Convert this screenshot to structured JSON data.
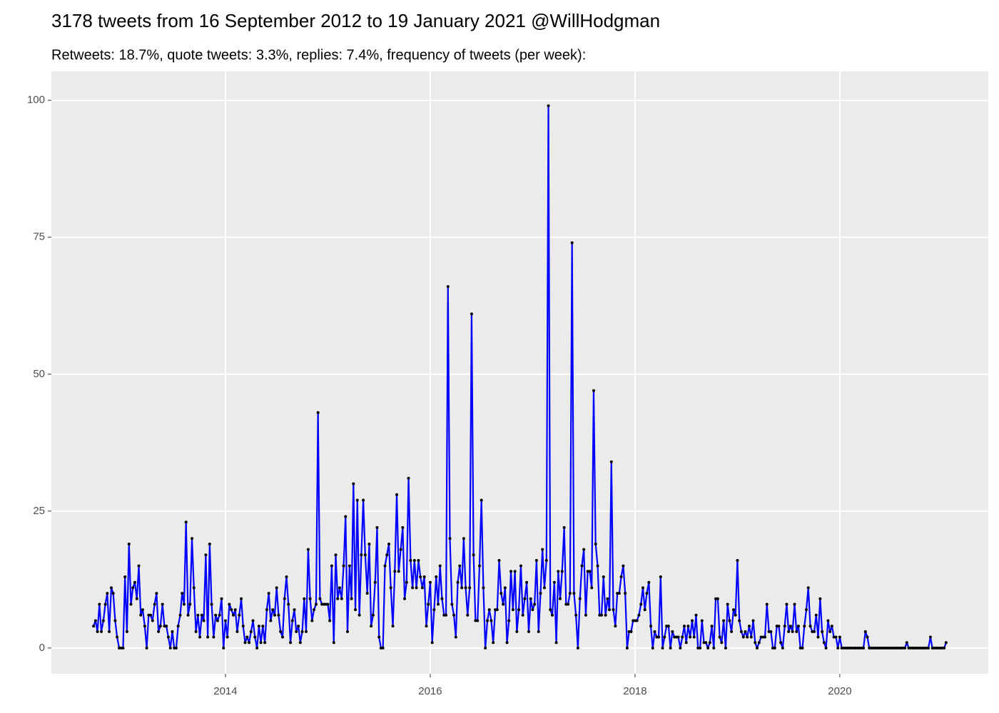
{
  "chart_data": {
    "type": "line",
    "title": "3178 tweets from 16 September 2012 to 19 January 2021 @WillHodgman",
    "subtitle": "Retweets: 18.7%, quote tweets: 3.3%, replies: 7.4%, frequency of tweets (per week):",
    "color": "#0000ff",
    "marker_color": "#000000",
    "grid": true,
    "xlim": [
      2012.3,
      2021.45
    ],
    "xticks": [
      2014,
      2016,
      2018,
      2020
    ],
    "ylim": [
      -4.7,
      105.3
    ],
    "yticks": [
      0,
      25,
      50,
      75,
      100
    ],
    "x": [
      2012.712,
      2012.731,
      2012.75,
      2012.769,
      2012.788,
      2012.808,
      2012.827,
      2012.846,
      2012.865,
      2012.885,
      2012.904,
      2012.923,
      2012.942,
      2012.962,
      2012.981,
      2013,
      2013.019,
      2013.038,
      2013.058,
      2013.077,
      2013.096,
      2013.115,
      2013.135,
      2013.154,
      2013.173,
      2013.192,
      2013.212,
      2013.231,
      2013.25,
      2013.269,
      2013.288,
      2013.308,
      2013.327,
      2013.346,
      2013.365,
      2013.385,
      2013.404,
      2013.423,
      2013.442,
      2013.462,
      2013.481,
      2013.5,
      2013.519,
      2013.538,
      2013.558,
      2013.577,
      2013.596,
      2013.615,
      2013.635,
      2013.654,
      2013.673,
      2013.692,
      2013.712,
      2013.731,
      2013.75,
      2013.769,
      2013.788,
      2013.808,
      2013.827,
      2013.846,
      2013.865,
      2013.885,
      2013.904,
      2013.923,
      2013.942,
      2013.962,
      2013.981,
      2014,
      2014.019,
      2014.038,
      2014.058,
      2014.077,
      2014.096,
      2014.115,
      2014.135,
      2014.154,
      2014.173,
      2014.192,
      2014.212,
      2014.231,
      2014.25,
      2014.269,
      2014.288,
      2014.308,
      2014.327,
      2014.346,
      2014.365,
      2014.385,
      2014.404,
      2014.423,
      2014.442,
      2014.462,
      2014.481,
      2014.5,
      2014.519,
      2014.538,
      2014.558,
      2014.577,
      2014.596,
      2014.615,
      2014.635,
      2014.654,
      2014.673,
      2014.692,
      2014.712,
      2014.731,
      2014.75,
      2014.769,
      2014.788,
      2014.808,
      2014.827,
      2014.846,
      2014.865,
      2014.885,
      2014.904,
      2014.923,
      2014.942,
      2014.962,
      2014.981,
      2015,
      2015.019,
      2015.038,
      2015.058,
      2015.077,
      2015.096,
      2015.115,
      2015.135,
      2015.154,
      2015.173,
      2015.192,
      2015.212,
      2015.231,
      2015.25,
      2015.269,
      2015.288,
      2015.308,
      2015.327,
      2015.346,
      2015.365,
      2015.385,
      2015.404,
      2015.423,
      2015.442,
      2015.462,
      2015.481,
      2015.5,
      2015.519,
      2015.538,
      2015.558,
      2015.577,
      2015.596,
      2015.615,
      2015.635,
      2015.654,
      2015.673,
      2015.692,
      2015.712,
      2015.731,
      2015.75,
      2015.769,
      2015.788,
      2015.808,
      2015.827,
      2015.846,
      2015.865,
      2015.885,
      2015.904,
      2015.923,
      2015.942,
      2015.962,
      2015.981,
      2016,
      2016.019,
      2016.038,
      2016.058,
      2016.077,
      2016.096,
      2016.115,
      2016.135,
      2016.154,
      2016.173,
      2016.192,
      2016.212,
      2016.231,
      2016.25,
      2016.269,
      2016.288,
      2016.308,
      2016.327,
      2016.346,
      2016.365,
      2016.385,
      2016.404,
      2016.423,
      2016.442,
      2016.462,
      2016.481,
      2016.5,
      2016.519,
      2016.538,
      2016.558,
      2016.577,
      2016.596,
      2016.615,
      2016.635,
      2016.654,
      2016.673,
      2016.692,
      2016.712,
      2016.731,
      2016.75,
      2016.769,
      2016.788,
      2016.808,
      2016.827,
      2016.846,
      2016.865,
      2016.885,
      2016.904,
      2016.923,
      2016.942,
      2016.962,
      2016.981,
      2017,
      2017.019,
      2017.038,
      2017.058,
      2017.077,
      2017.096,
      2017.115,
      2017.135,
      2017.154,
      2017.173,
      2017.192,
      2017.212,
      2017.231,
      2017.25,
      2017.269,
      2017.288,
      2017.308,
      2017.327,
      2017.346,
      2017.365,
      2017.385,
      2017.404,
      2017.423,
      2017.442,
      2017.462,
      2017.481,
      2017.5,
      2017.519,
      2017.538,
      2017.558,
      2017.577,
      2017.596,
      2017.615,
      2017.635,
      2017.654,
      2017.673,
      2017.692,
      2017.712,
      2017.731,
      2017.75,
      2017.769,
      2017.788,
      2017.808,
      2017.827,
      2017.846,
      2017.865,
      2017.885,
      2017.904,
      2017.923,
      2017.942,
      2017.962,
      2017.981,
      2018,
      2018.019,
      2018.038,
      2018.058,
      2018.077,
      2018.096,
      2018.115,
      2018.135,
      2018.154,
      2018.173,
      2018.192,
      2018.212,
      2018.231,
      2018.25,
      2018.269,
      2018.288,
      2018.308,
      2018.327,
      2018.346,
      2018.365,
      2018.385,
      2018.404,
      2018.423,
      2018.442,
      2018.462,
      2018.481,
      2018.5,
      2018.519,
      2018.538,
      2018.558,
      2018.577,
      2018.596,
      2018.615,
      2018.635,
      2018.654,
      2018.673,
      2018.692,
      2018.712,
      2018.731,
      2018.75,
      2018.769,
      2018.788,
      2018.808,
      2018.827,
      2018.846,
      2018.865,
      2018.885,
      2018.904,
      2018.923,
      2018.942,
      2018.962,
      2018.981,
      2019,
      2019.019,
      2019.038,
      2019.058,
      2019.077,
      2019.096,
      2019.115,
      2019.135,
      2019.154,
      2019.173,
      2019.192,
      2019.212,
      2019.231,
      2019.25,
      2019.269,
      2019.288,
      2019.308,
      2019.327,
      2019.346,
      2019.365,
      2019.385,
      2019.404,
      2019.423,
      2019.442,
      2019.462,
      2019.481,
      2019.5,
      2019.519,
      2019.538,
      2019.558,
      2019.577,
      2019.596,
      2019.615,
      2019.635,
      2019.654,
      2019.673,
      2019.692,
      2019.712,
      2019.731,
      2019.75,
      2019.769,
      2019.788,
      2019.808,
      2019.827,
      2019.846,
      2019.865,
      2019.885,
      2019.904,
      2019.923,
      2019.942,
      2019.962,
      2019.981,
      2020,
      2020.019,
      2020.038,
      2020.058,
      2020.077,
      2020.096,
      2020.115,
      2020.135,
      2020.154,
      2020.173,
      2020.192,
      2020.212,
      2020.231,
      2020.25,
      2020.269,
      2020.288,
      2020.308,
      2020.327,
      2020.346,
      2020.365,
      2020.385,
      2020.404,
      2020.423,
      2020.442,
      2020.462,
      2020.481,
      2020.5,
      2020.519,
      2020.538,
      2020.558,
      2020.577,
      2020.596,
      2020.615,
      2020.635,
      2020.654,
      2020.673,
      2020.692,
      2020.712,
      2020.731,
      2020.75,
      2020.769,
      2020.788,
      2020.808,
      2020.827,
      2020.846,
      2020.865,
      2020.885,
      2020.904,
      2020.923,
      2020.942,
      2020.962,
      2020.981,
      2021,
      2021.019,
      2021.038
    ],
    "values": [
      4,
      5,
      3,
      8,
      3,
      5,
      8,
      10,
      3,
      11,
      10,
      5,
      2,
      0,
      0,
      0,
      13,
      3,
      19,
      8,
      11,
      12,
      9,
      15,
      6,
      7,
      4,
      0,
      6,
      6,
      5,
      8,
      10,
      3,
      4,
      8,
      4,
      4,
      2,
      0,
      3,
      0,
      0,
      4,
      6,
      10,
      8,
      23,
      6,
      8,
      20,
      11,
      3,
      6,
      2,
      6,
      5,
      17,
      2,
      19,
      8,
      2,
      6,
      5,
      6,
      9,
      0,
      5,
      2,
      8,
      7,
      6,
      7,
      3,
      6,
      9,
      4,
      1,
      2,
      1,
      3,
      5,
      2,
      0,
      4,
      1,
      4,
      1,
      7,
      10,
      5,
      7,
      6,
      11,
      6,
      3,
      2,
      9,
      13,
      8,
      1,
      5,
      7,
      3,
      4,
      1,
      3,
      9,
      3,
      18,
      9,
      5,
      7,
      8,
      43,
      9,
      8,
      8,
      8,
      8,
      5,
      15,
      1,
      17,
      9,
      11,
      9,
      15,
      24,
      3,
      15,
      9,
      30,
      7,
      27,
      6,
      17,
      27,
      17,
      10,
      19,
      4,
      6,
      12,
      22,
      2,
      0,
      0,
      15,
      17,
      19,
      11,
      4,
      14,
      28,
      14,
      18,
      22,
      9,
      12,
      31,
      16,
      11,
      16,
      11,
      16,
      13,
      11,
      13,
      4,
      8,
      12,
      1,
      7,
      13,
      8,
      15,
      9,
      6,
      6,
      66,
      20,
      8,
      6,
      2,
      12,
      15,
      11,
      20,
      11,
      6,
      11,
      61,
      17,
      5,
      5,
      15,
      27,
      11,
      0,
      5,
      7,
      5,
      1,
      7,
      7,
      16,
      10,
      8,
      11,
      1,
      5,
      14,
      7,
      14,
      3,
      7,
      15,
      6,
      9,
      12,
      3,
      9,
      7,
      8,
      16,
      3,
      10,
      18,
      11,
      16,
      99,
      7,
      6,
      12,
      1,
      14,
      9,
      14,
      22,
      8,
      8,
      10,
      74,
      10,
      6,
      0,
      9,
      15,
      18,
      6,
      14,
      14,
      11,
      47,
      19,
      15,
      6,
      6,
      13,
      6,
      9,
      7,
      34,
      7,
      4,
      10,
      10,
      13,
      15,
      10,
      0,
      3,
      3,
      5,
      5,
      5,
      6,
      8,
      11,
      7,
      10,
      12,
      4,
      0,
      3,
      2,
      2,
      13,
      0,
      2,
      4,
      4,
      0,
      3,
      2,
      2,
      2,
      0,
      2,
      4,
      1,
      4,
      2,
      5,
      2,
      6,
      0,
      0,
      5,
      1,
      1,
      0,
      1,
      4,
      0,
      9,
      9,
      2,
      1,
      5,
      0,
      8,
      5,
      3,
      7,
      6,
      16,
      5,
      3,
      2,
      3,
      2,
      4,
      2,
      5,
      1,
      0,
      1,
      2,
      2,
      2,
      8,
      3,
      3,
      0,
      0,
      4,
      4,
      1,
      0,
      4,
      8,
      3,
      4,
      3,
      8,
      3,
      4,
      0,
      0,
      4,
      7,
      11,
      4,
      3,
      3,
      6,
      2,
      9,
      3,
      1,
      0,
      5,
      3,
      4,
      2,
      2,
      0,
      2,
      0,
      0,
      0,
      0,
      0,
      0,
      0,
      0,
      0,
      0,
      0,
      0,
      3,
      2,
      0,
      0,
      0,
      0,
      0,
      0,
      0,
      0,
      0,
      0,
      0,
      0,
      0,
      0,
      0,
      0,
      0,
      0,
      0,
      1,
      0,
      0,
      0,
      0,
      0,
      0,
      0,
      0,
      0,
      0,
      0,
      2,
      0,
      0,
      0,
      0,
      0,
      0,
      0,
      1
    ]
  }
}
